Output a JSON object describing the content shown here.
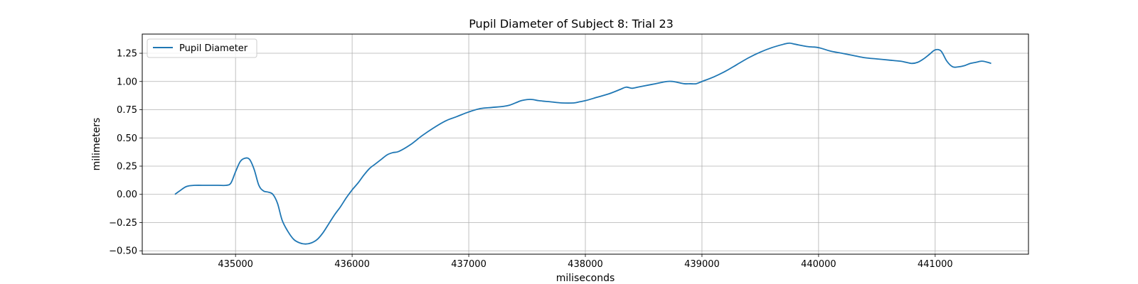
{
  "chart_data": {
    "type": "line",
    "title": "Pupil Diameter of Subject 8: Trial 23",
    "xlabel": "miliseconds",
    "ylabel": "milimeters",
    "xlim": [
      434200,
      441800
    ],
    "ylim": [
      -0.53,
      1.42
    ],
    "xticks": [
      435000,
      436000,
      437000,
      438000,
      439000,
      440000,
      441000
    ],
    "yticks": [
      -0.5,
      -0.25,
      0.0,
      0.25,
      0.5,
      0.75,
      1.0,
      1.25
    ],
    "xtick_labels": [
      "435000",
      "436000",
      "437000",
      "438000",
      "439000",
      "440000",
      "441000"
    ],
    "ytick_labels": [
      "−0.50",
      "−0.25",
      "0.00",
      "0.25",
      "0.50",
      "0.75",
      "1.00",
      "1.25"
    ],
    "grid": true,
    "legend_position": "top-left",
    "series": [
      {
        "name": "Pupil Diameter",
        "color": "#1f77b4",
        "x": [
          434480,
          434520,
          434580,
          434650,
          434750,
          434850,
          434920,
          434960,
          435000,
          435040,
          435080,
          435120,
          435160,
          435200,
          435240,
          435280,
          435320,
          435360,
          435400,
          435450,
          435500,
          435550,
          435600,
          435650,
          435700,
          435750,
          435800,
          435850,
          435900,
          435950,
          436000,
          436050,
          436100,
          436150,
          436200,
          436250,
          436300,
          436350,
          436400,
          436500,
          436600,
          436700,
          436800,
          436900,
          437000,
          437100,
          437200,
          437300,
          437350,
          437400,
          437450,
          437500,
          437550,
          437600,
          437700,
          437800,
          437900,
          437950,
          438000,
          438100,
          438200,
          438300,
          438350,
          438400,
          438450,
          438500,
          438600,
          438700,
          438750,
          438800,
          438850,
          438900,
          438950,
          439000,
          439100,
          439200,
          439300,
          439400,
          439500,
          439600,
          439700,
          439750,
          439800,
          439900,
          440000,
          440100,
          440200,
          440300,
          440400,
          440500,
          440600,
          440700,
          440750,
          440800,
          440850,
          440900,
          440950,
          441000,
          441050,
          441100,
          441150,
          441200,
          441250,
          441300,
          441350,
          441400,
          441450,
          441480
        ],
        "values": [
          0.0,
          0.03,
          0.07,
          0.08,
          0.08,
          0.08,
          0.08,
          0.1,
          0.2,
          0.29,
          0.32,
          0.31,
          0.22,
          0.08,
          0.03,
          0.02,
          0.0,
          -0.08,
          -0.23,
          -0.33,
          -0.4,
          -0.43,
          -0.44,
          -0.43,
          -0.4,
          -0.34,
          -0.26,
          -0.18,
          -0.11,
          -0.03,
          0.04,
          0.1,
          0.17,
          0.23,
          0.27,
          0.31,
          0.35,
          0.37,
          0.38,
          0.44,
          0.52,
          0.59,
          0.65,
          0.69,
          0.73,
          0.76,
          0.77,
          0.78,
          0.79,
          0.81,
          0.83,
          0.84,
          0.84,
          0.83,
          0.82,
          0.81,
          0.81,
          0.82,
          0.83,
          0.86,
          0.89,
          0.93,
          0.95,
          0.94,
          0.95,
          0.96,
          0.98,
          1.0,
          1.0,
          0.99,
          0.98,
          0.98,
          0.98,
          1.0,
          1.04,
          1.09,
          1.15,
          1.21,
          1.26,
          1.3,
          1.33,
          1.34,
          1.33,
          1.31,
          1.3,
          1.27,
          1.25,
          1.23,
          1.21,
          1.2,
          1.19,
          1.18,
          1.17,
          1.16,
          1.17,
          1.2,
          1.24,
          1.28,
          1.27,
          1.18,
          1.13,
          1.13,
          1.14,
          1.16,
          1.17,
          1.18,
          1.17,
          1.16
        ]
      }
    ]
  }
}
